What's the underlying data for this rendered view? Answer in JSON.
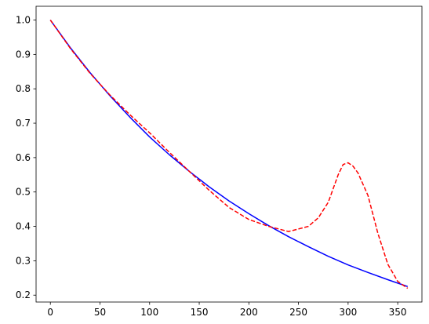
{
  "chart_data": {
    "type": "line",
    "title": "",
    "xlabel": "",
    "ylabel": "",
    "xlim": [
      -14.4,
      374.4
    ],
    "ylim": [
      0.18,
      1.04
    ],
    "grid": false,
    "legend": "none",
    "xticks": [
      0,
      50,
      100,
      150,
      200,
      250,
      300,
      350
    ],
    "xtick_labels": [
      "0",
      "50",
      "100",
      "150",
      "200",
      "250",
      "300",
      "350"
    ],
    "yticks": [
      0.2,
      0.3,
      0.4,
      0.5,
      0.6,
      0.7,
      0.8,
      0.9,
      1.0
    ],
    "ytick_labels": [
      "0.2",
      "0.3",
      "0.4",
      "0.5",
      "0.6",
      "0.7",
      "0.8",
      "0.9",
      "1.0"
    ],
    "series": [
      {
        "color": "#0000ff",
        "linestyle": "solid",
        "x": [
          0,
          20,
          40,
          60,
          80,
          100,
          120,
          140,
          160,
          180,
          200,
          220,
          240,
          260,
          280,
          300,
          320,
          340,
          360
        ],
        "y": [
          1.0,
          0.92,
          0.847,
          0.78,
          0.718,
          0.66,
          0.608,
          0.56,
          0.515,
          0.474,
          0.437,
          0.402,
          0.37,
          0.341,
          0.313,
          0.288,
          0.266,
          0.245,
          0.225
        ]
      },
      {
        "color": "#ff0000",
        "linestyle": "dashed",
        "x": [
          0,
          20,
          40,
          60,
          80,
          100,
          120,
          140,
          160,
          180,
          200,
          220,
          240,
          260,
          270,
          280,
          290,
          295,
          300,
          305,
          310,
          320,
          330,
          340,
          350,
          360
        ],
        "y": [
          1.0,
          0.918,
          0.845,
          0.782,
          0.725,
          0.672,
          0.615,
          0.56,
          0.505,
          0.455,
          0.42,
          0.4,
          0.385,
          0.4,
          0.425,
          0.47,
          0.55,
          0.58,
          0.585,
          0.575,
          0.555,
          0.49,
          0.38,
          0.29,
          0.24,
          0.22
        ]
      }
    ]
  }
}
